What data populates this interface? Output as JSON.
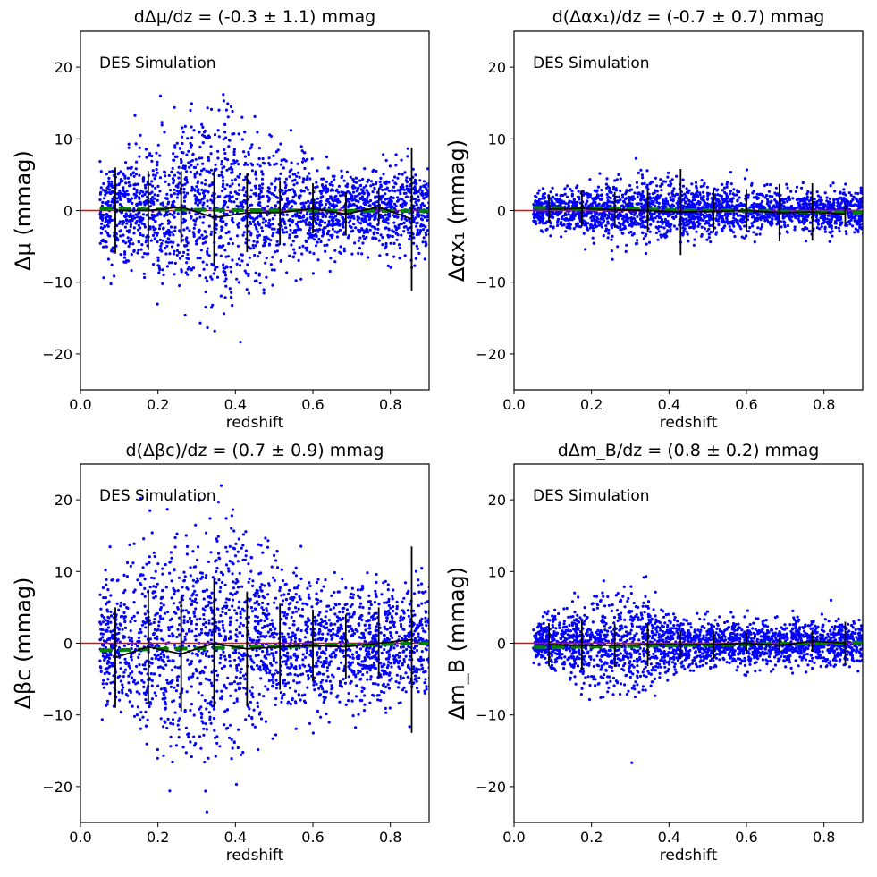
{
  "figure": {
    "label": "DES Simulation bias panels"
  },
  "chart_data": [
    {
      "type": "scatter",
      "title": "dΔμ/dz = (-0.3 ± 1.1) mmag",
      "ylabel": "Δμ (mmag)",
      "xlabel": "redshift",
      "annotation": "DES Simulation",
      "xlim": [
        0.0,
        0.9
      ],
      "ylim": [
        -25,
        25
      ],
      "xticks": [
        "0.0",
        "0.2",
        "0.4",
        "0.6",
        "0.8"
      ],
      "yticks": [
        "−20",
        "−10",
        "0",
        "10",
        "20"
      ],
      "scatter_profile": {
        "x": [
          0.05,
          0.1,
          0.15,
          0.2,
          0.25,
          0.3,
          0.35,
          0.4,
          0.45,
          0.5,
          0.55,
          0.6,
          0.65,
          0.7,
          0.75,
          0.8,
          0.85,
          0.9
        ],
        "sigma": [
          2.5,
          3.5,
          4.5,
          5.0,
          5.5,
          6.5,
          7.0,
          6.5,
          5.0,
          4.0,
          3.5,
          3.0,
          2.5,
          2.5,
          2.5,
          3.0,
          3.0,
          3.0
        ],
        "n_points": 2400
      },
      "binned": {
        "x": [
          0.09,
          0.175,
          0.26,
          0.345,
          0.43,
          0.515,
          0.6,
          0.685,
          0.77,
          0.855
        ],
        "y": [
          0.0,
          0.0,
          0.5,
          -1.0,
          -0.3,
          -0.3,
          0.3,
          -0.5,
          0.5,
          -1.2
        ],
        "err": [
          6,
          5.5,
          5,
          6.5,
          5.5,
          4.5,
          3.5,
          3,
          2.5,
          10
        ]
      },
      "fit_line": {
        "x": [
          0.05,
          0.9
        ],
        "y": [
          0.2,
          -0.1
        ]
      },
      "reference_line": 0
    },
    {
      "type": "scatter",
      "title": "d(Δαx₁)/dz = (-0.7 ± 0.7) mmag",
      "ylabel": "Δαx₁ (mmag)",
      "xlabel": "redshift",
      "annotation": "DES Simulation",
      "xlim": [
        0.0,
        0.9
      ],
      "ylim": [
        -25,
        25
      ],
      "xticks": [
        "0.0",
        "0.2",
        "0.4",
        "0.6",
        "0.8"
      ],
      "yticks": [
        "−20",
        "−10",
        "0",
        "10",
        "20"
      ],
      "scatter_profile": {
        "x": [
          0.05,
          0.1,
          0.15,
          0.2,
          0.25,
          0.3,
          0.35,
          0.4,
          0.45,
          0.5,
          0.55,
          0.6,
          0.65,
          0.7,
          0.75,
          0.8,
          0.85,
          0.9
        ],
        "sigma": [
          1.2,
          1.4,
          1.6,
          1.8,
          2.0,
          2.2,
          2.2,
          2.0,
          1.8,
          1.6,
          1.5,
          1.5,
          1.4,
          1.4,
          1.4,
          1.4,
          1.4,
          1.4
        ],
        "n_points": 2400
      },
      "binned": {
        "x": [
          0.09,
          0.175,
          0.26,
          0.345,
          0.43,
          0.515,
          0.6,
          0.685,
          0.77,
          0.855
        ],
        "y": [
          0.2,
          0.3,
          0.1,
          0.0,
          -0.2,
          -0.1,
          0.0,
          -0.3,
          -0.2,
          -0.5
        ],
        "err": [
          2,
          2.5,
          2.5,
          3,
          6,
          3,
          3,
          4,
          4,
          1.5
        ]
      },
      "fit_line": {
        "x": [
          0.05,
          0.9
        ],
        "y": [
          0.4,
          -0.3
        ]
      },
      "reference_line": 0
    },
    {
      "type": "scatter",
      "title": "d(Δβc)/dz = (0.7 ± 0.9) mmag",
      "ylabel": "Δβc (mmag)",
      "xlabel": "redshift",
      "annotation": "DES Simulation",
      "xlim": [
        0.0,
        0.9
      ],
      "ylim": [
        -25,
        25
      ],
      "xticks": [
        "0.0",
        "0.2",
        "0.4",
        "0.6",
        "0.8"
      ],
      "yticks": [
        "−20",
        "−10",
        "0",
        "10",
        "20"
      ],
      "scatter_profile": {
        "x": [
          0.05,
          0.1,
          0.15,
          0.2,
          0.25,
          0.3,
          0.35,
          0.4,
          0.45,
          0.5,
          0.55,
          0.6,
          0.65,
          0.7,
          0.75,
          0.8,
          0.85,
          0.9
        ],
        "sigma": [
          4,
          5,
          6,
          7,
          7.5,
          8,
          8,
          7.5,
          6.5,
          5.5,
          5,
          4.5,
          4,
          4,
          4,
          4,
          4,
          4
        ],
        "n_points": 2400
      },
      "binned": {
        "x": [
          0.09,
          0.175,
          0.26,
          0.345,
          0.43,
          0.515,
          0.6,
          0.685,
          0.77,
          0.855
        ],
        "y": [
          -2.0,
          -0.5,
          -1.5,
          0.0,
          -0.8,
          -0.5,
          -0.3,
          -0.5,
          0.0,
          0.5
        ],
        "err": [
          7,
          8,
          8,
          9,
          8,
          6,
          5,
          4.5,
          5,
          13
        ]
      },
      "fit_line": {
        "x": [
          0.05,
          0.9
        ],
        "y": [
          -1.0,
          0.0
        ]
      },
      "reference_line": 0
    },
    {
      "type": "scatter",
      "title": "dΔm_B/dz = (0.8 ± 0.2) mmag",
      "ylabel": "Δm_B (mmag)",
      "xlabel": "redshift",
      "annotation": "DES Simulation",
      "xlim": [
        0.0,
        0.9
      ],
      "ylim": [
        -25,
        25
      ],
      "xticks": [
        "0.0",
        "0.2",
        "0.4",
        "0.6",
        "0.8"
      ],
      "yticks": [
        "−20",
        "−10",
        "0",
        "10",
        "20"
      ],
      "scatter_profile": {
        "x": [
          0.05,
          0.1,
          0.15,
          0.2,
          0.25,
          0.3,
          0.35,
          0.4,
          0.45,
          0.5,
          0.55,
          0.6,
          0.65,
          0.7,
          0.75,
          0.8,
          0.85,
          0.9
        ],
        "sigma": [
          1.2,
          1.8,
          2.5,
          3.2,
          3.5,
          3.5,
          3.2,
          2.0,
          1.6,
          1.6,
          1.6,
          1.6,
          1.3,
          1.5,
          1.6,
          1.4,
          1.4,
          1.4
        ],
        "n_points": 2400
      },
      "binned": {
        "x": [
          0.09,
          0.175,
          0.26,
          0.345,
          0.43,
          0.515,
          0.6,
          0.685,
          0.77,
          0.855
        ],
        "y": [
          -0.2,
          -0.3,
          -0.3,
          -0.2,
          -0.2,
          -0.2,
          0.0,
          -0.3,
          0.3,
          0.0
        ],
        "err": [
          3,
          3.5,
          3,
          3,
          2,
          2,
          1.5,
          1,
          1.5,
          3
        ]
      },
      "fit_line": {
        "x": [
          0.05,
          0.9
        ],
        "y": [
          -0.6,
          0.1
        ]
      },
      "reference_line": 0
    }
  ],
  "colors": {
    "points": "#0000ff",
    "binned": "#000000",
    "fit": "#008000",
    "reference": "#ff0000"
  }
}
